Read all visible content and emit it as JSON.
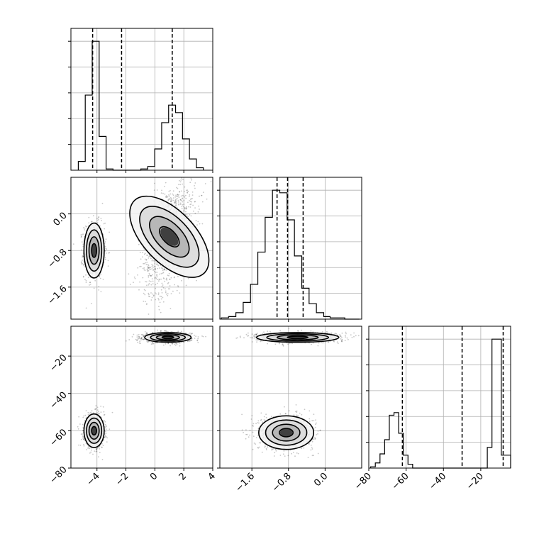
{
  "chart_data": {
    "type": "corner",
    "parameters": [
      {
        "index": 0,
        "range": [
          -5.8,
          4.0
        ],
        "ticks": [
          "−4",
          "−2",
          "0",
          "2",
          "4"
        ],
        "tick_values": [
          -4,
          -2,
          0,
          2,
          4
        ]
      },
      {
        "index": 1,
        "range": [
          -2.3,
          0.8
        ],
        "ticks": [
          "−1.6",
          "−0.8",
          "0.0"
        ],
        "tick_values": [
          -1.6,
          -0.8,
          0.0
        ]
      },
      {
        "index": 2,
        "range": [
          -80,
          -4
        ],
        "ticks": [
          "−80",
          "−60",
          "−40",
          "−20"
        ],
        "tick_values": [
          -80,
          -60,
          -40,
          -20
        ]
      }
    ],
    "histograms": [
      {
        "parameter": 0,
        "bins": [
          -5.29,
          -4.81,
          -4.33,
          -3.85,
          -3.37,
          -2.89,
          -2.41,
          -1.93,
          -1.45,
          -0.97,
          -0.49,
          -0.01,
          0.47,
          0.95,
          1.43,
          1.91,
          2.39,
          2.87,
          3.35
        ],
        "counts": [
          0.07,
          0.6,
          1.03,
          0.27,
          0.01,
          0.0,
          0.0,
          0.0,
          0.0,
          0.01,
          0.03,
          0.17,
          0.38,
          0.52,
          0.46,
          0.25,
          0.09,
          0.02
        ],
        "quantiles": [
          -4.3,
          -2.3,
          1.2
        ]
      },
      {
        "parameter": 1,
        "bins": [
          -2.27,
          -2.11,
          -1.95,
          -1.79,
          -1.63,
          -1.47,
          -1.31,
          -1.15,
          -0.99,
          -0.83,
          -0.67,
          -0.51,
          -0.35,
          -0.19,
          -0.03,
          0.11,
          0.27,
          0.43,
          0.59,
          0.75
        ],
        "counts": [
          0.01,
          0.02,
          0.05,
          0.13,
          0.27,
          0.52,
          0.79,
          1.0,
          0.98,
          0.77,
          0.49,
          0.24,
          0.12,
          0.05,
          0.02,
          0.01,
          0.01,
          0.0,
          0.0
        ],
        "quantiles": [
          -1.05,
          -0.82,
          -0.48
        ]
      },
      {
        "parameter": 2,
        "bins": [
          -79,
          -76.5,
          -74,
          -71.5,
          -69,
          -66.5,
          -64,
          -61.5,
          -59,
          -56.5,
          -54,
          -51.5,
          -49,
          -46.5,
          -44,
          -41.5,
          -39,
          -36.5,
          -34,
          -31.5,
          -29,
          -26.5,
          -24,
          -21.5,
          -19,
          -16.5,
          -14,
          -11.5,
          -9,
          -6.5,
          -4
        ],
        "counts": [
          0.01,
          0.04,
          0.11,
          0.22,
          0.41,
          0.43,
          0.27,
          0.1,
          0.03,
          0.0,
          0.0,
          0.0,
          0.0,
          0.0,
          0.0,
          0.0,
          0.0,
          0.0,
          0.0,
          0.0,
          0.0,
          0.0,
          0.0,
          0.0,
          0.0,
          0.16,
          1.0,
          1.0,
          0.1,
          0.1
        ],
        "quantiles": [
          -62,
          -30,
          -8
        ]
      }
    ],
    "scatter_panels": [
      {
        "x_param": 0,
        "y_param": 1,
        "clusters": [
          {
            "center": [
              -4.2,
              -0.8
            ],
            "spread": [
              0.35,
              0.3
            ],
            "n": 900
          },
          {
            "center": [
              1.0,
              -0.5
            ],
            "spread": [
              0.9,
              0.55
            ],
            "n": 1200
          }
        ]
      },
      {
        "x_param": 0,
        "y_param": 2,
        "clusters": [
          {
            "center": [
              -4.2,
              -60
            ],
            "spread": [
              0.35,
              4.5
            ],
            "n": 900
          },
          {
            "center": [
              0.9,
              -10
            ],
            "spread": [
              0.8,
              1.3
            ],
            "n": 1200
          }
        ]
      },
      {
        "x_param": 1,
        "y_param": 2,
        "clusters": [
          {
            "center": [
              -0.85,
              -61
            ],
            "spread": [
              0.3,
              4.5
            ],
            "n": 900
          },
          {
            "center": [
              -0.6,
              -10
            ],
            "spread": [
              0.45,
              1.3
            ],
            "n": 1200
          }
        ]
      }
    ],
    "grid": true
  }
}
